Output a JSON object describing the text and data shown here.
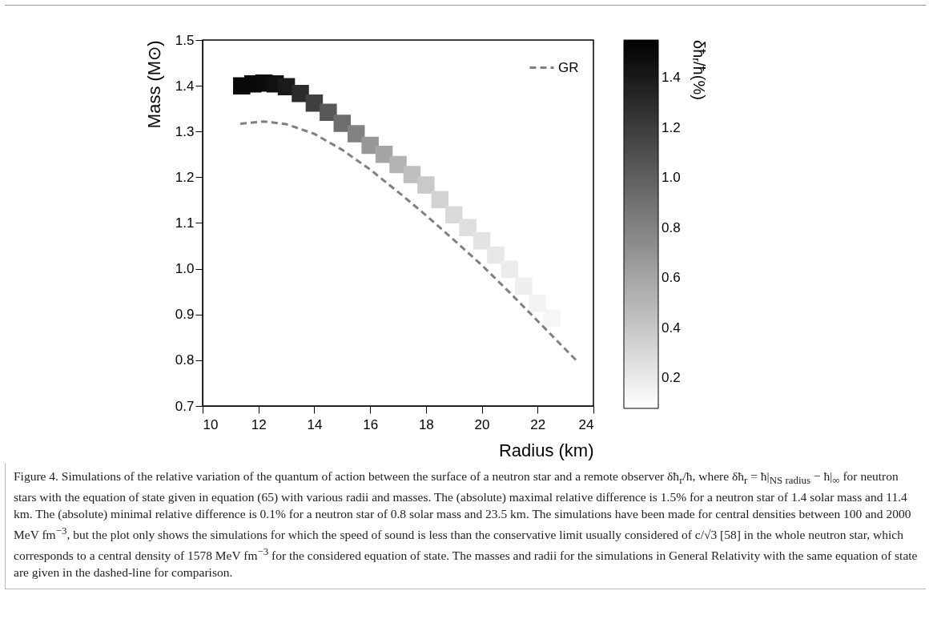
{
  "chart_data": {
    "type": "scatter",
    "xlabel": "Radius (km)",
    "ylabel": "Mass (M⊙)",
    "clabel": "δħᵣ/ħ(%)",
    "xlim": [
      10,
      24
    ],
    "xticks": [
      10,
      12,
      14,
      16,
      18,
      20,
      22,
      24
    ],
    "ylim": [
      0.7,
      1.5
    ],
    "yticks": [
      0.7,
      0.8,
      0.9,
      {
        "value": 1,
        "label": "1.0"
      },
      1.1,
      1.2,
      1.3,
      1.4,
      1.5
    ],
    "clim": [
      0.08,
      1.55
    ],
    "cticks": [
      0.2,
      0.4,
      0.6,
      0.8,
      {
        "value": 1,
        "label": "1.0"
      },
      1.2,
      1.4
    ],
    "marker": "square",
    "legend": "top right",
    "series": [
      {
        "type": "scatter",
        "x": [
          11.4,
          11.8,
          12.2,
          12.6,
          13.0,
          13.5,
          14.0,
          14.5,
          15.0,
          15.5,
          16.0,
          16.5,
          17.0,
          17.5,
          18.0,
          18.5,
          19.0,
          19.5,
          20.0,
          20.5,
          21.0,
          21.5,
          22.0,
          22.5
        ],
        "values": [
          1.4,
          1.404,
          1.406,
          1.404,
          1.398,
          1.383,
          1.362,
          1.342,
          1.318,
          1.295,
          1.27,
          1.25,
          1.228,
          1.206,
          1.183,
          1.151,
          1.118,
          1.09,
          1.061,
          1.03,
          0.999,
          0.962,
          0.924,
          0.892
        ],
        "cvalues": [
          1.5,
          1.5,
          1.48,
          1.45,
          1.4,
          1.3,
          1.18,
          1.04,
          0.92,
          0.8,
          0.68,
          0.6,
          0.52,
          0.45,
          0.39,
          0.34,
          0.3,
          0.27,
          0.24,
          0.21,
          0.19,
          0.17,
          0.15,
          0.13
        ],
        "colors": [
          "#090909",
          "#090909",
          "#0c0c0c",
          "#111111",
          "#1a1a1a",
          "#2b2b2b",
          "#404040",
          "#585858",
          "#6d6d6d",
          "#828282",
          "#979797",
          "#a5a5a5",
          "#b3b3b3",
          "#bfbfbf",
          "#c9c9c9",
          "#d2d2d2",
          "#d9d9d9",
          "#dedede",
          "#e3e3e3",
          "#e8e8e8",
          "#ececec",
          "#efefef",
          "#f3f3f3",
          "#f6f6f6"
        ]
      },
      {
        "type": "line",
        "name": "GR",
        "color": "#808080",
        "line_style": "dashed",
        "marker": "none",
        "x": [
          11.35,
          12.2,
          13.0,
          14.0,
          15.0,
          16.0,
          17.2,
          18.0,
          19.0,
          20.0,
          21.0,
          22.0,
          23.38
        ],
        "values": [
          1.317,
          1.322,
          1.316,
          1.295,
          1.26,
          1.217,
          1.158,
          1.117,
          1.063,
          1.008,
          0.948,
          0.886,
          0.8
        ]
      }
    ],
    "annotations": [
      "Figure 4. Simulations of the relative variation of the quantum of action between the surface of a neutron star and a remote observer δħ$_{r}$/ħ, where δħ$_{r}$ = ħ|$_{NS radius}$ − ħ|$_{∞}$ for neutron stars with the equation of state given in equation (65) with various radii and masses. The (absolute) maximal relative difference is 1.5% for a neutron star of 1.4 solar mass and 11.4 km. The (absolute) minimal relative difference is 0.1% for a neutron star of 0.8 solar mass and 23.5 km. The simulations have been made for central densities between 100 and 2000 MeV fm$^{−3}$, but the plot only shows the simulations for which the speed of sound is less than the conservative limit usually considered of c/√3 [58] in the whole neutron star, which corresponds to a central density of 1578 MeV fm$^{−3}$ for the considered equation of state. The masses and radii for the simulations in General Relativity with the same equation of state are given in the dashed-line for comparison."
    ]
  }
}
